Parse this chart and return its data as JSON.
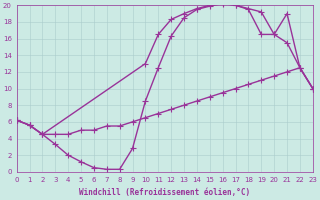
{
  "bg_color": "#cceae4",
  "grid_color": "#aacccc",
  "line_color": "#993399",
  "line_width": 1.0,
  "marker": "+",
  "marker_size": 4,
  "marker_edge_width": 0.8,
  "xlim": [
    0,
    23
  ],
  "ylim": [
    0,
    20
  ],
  "xlabel": "Windchill (Refroidissement éolien,°C)",
  "xlabel_fontsize": 5.5,
  "tick_fontsize": 5.0,
  "xtick_vals": [
    0,
    1,
    2,
    3,
    4,
    5,
    6,
    7,
    8,
    9,
    10,
    11,
    12,
    13,
    14,
    15,
    16,
    17,
    18,
    19,
    20,
    21,
    22,
    23
  ],
  "ytick_vals": [
    0,
    2,
    4,
    6,
    8,
    10,
    12,
    14,
    16,
    18,
    20
  ],
  "line1_x": [
    0,
    1,
    2,
    10,
    11,
    12,
    13,
    14,
    15,
    16,
    17,
    19,
    20,
    21,
    22,
    23
  ],
  "line1_y": [
    6.2,
    5.6,
    4.5,
    13.0,
    16.5,
    18.3,
    19.0,
    19.6,
    20.0,
    20.3,
    20.0,
    19.2,
    16.5,
    19.0,
    12.5,
    10.0
  ],
  "line2_x": [
    0,
    1,
    2,
    3,
    4,
    5,
    6,
    7,
    8,
    9,
    10,
    11,
    12,
    13,
    14,
    15,
    16,
    17,
    18,
    19,
    20,
    21,
    22,
    23
  ],
  "line2_y": [
    6.2,
    5.6,
    4.5,
    4.5,
    4.5,
    5.0,
    5.0,
    5.5,
    5.5,
    6.0,
    6.5,
    7.0,
    7.5,
    8.0,
    8.5,
    9.0,
    9.5,
    10.0,
    10.5,
    11.0,
    11.5,
    12.0,
    12.5,
    10.0
  ],
  "line3_x": [
    0,
    1,
    2,
    3,
    4,
    5,
    6,
    7,
    8,
    9,
    10,
    11,
    12,
    13,
    14,
    15,
    16,
    17,
    18,
    19,
    20,
    21,
    22,
    23
  ],
  "line3_y": [
    6.2,
    5.6,
    4.5,
    3.3,
    2.0,
    1.2,
    0.5,
    0.3,
    0.3,
    2.8,
    8.5,
    12.5,
    16.3,
    18.5,
    19.5,
    19.9,
    20.2,
    20.0,
    19.5,
    16.5,
    16.5,
    15.5,
    12.5,
    10.0
  ]
}
